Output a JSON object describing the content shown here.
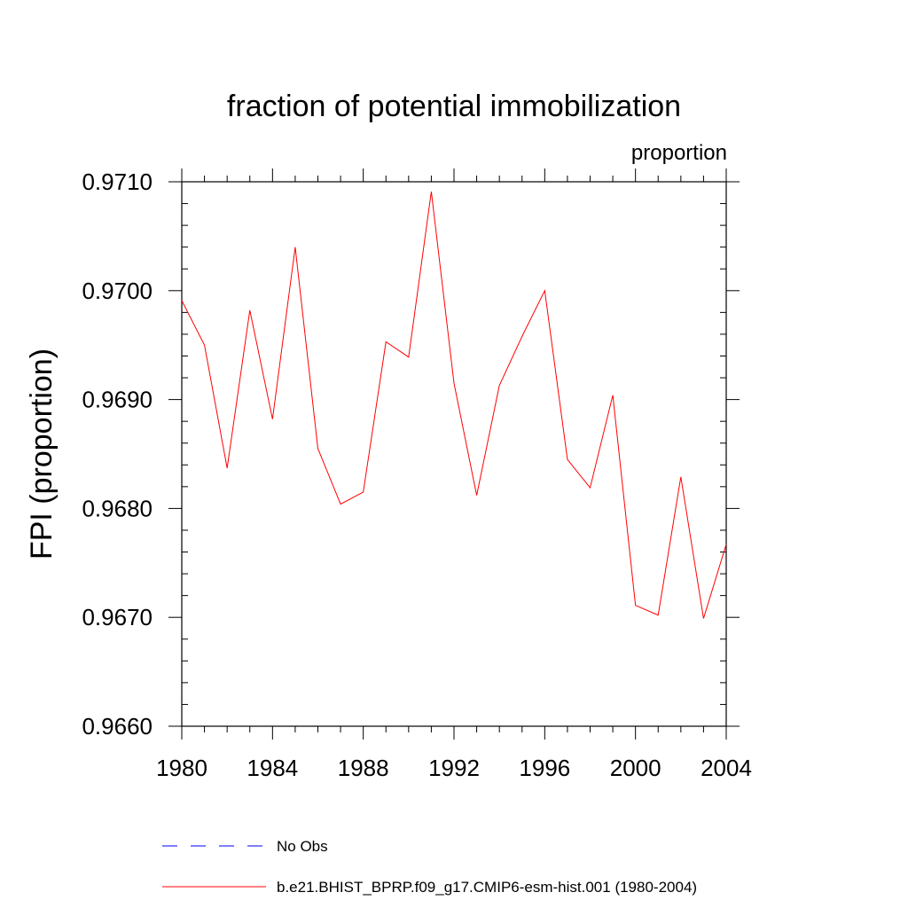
{
  "chart_data": {
    "type": "line",
    "title": "fraction of potential immobilization",
    "units_label": "proportion",
    "xlabel": "",
    "ylabel": "FPI  (proportion)",
    "xlim": [
      1980,
      2004
    ],
    "ylim": [
      0.966,
      0.971
    ],
    "x_ticks": [
      1980,
      1984,
      1988,
      1992,
      1996,
      2000,
      2004
    ],
    "x_tick_labels": [
      "1980",
      "1984",
      "1988",
      "1992",
      "1996",
      "2000",
      "2004"
    ],
    "y_ticks": [
      0.966,
      0.967,
      0.968,
      0.969,
      0.97,
      0.971
    ],
    "y_tick_labels": [
      "0.9660",
      "0.9670",
      "0.9680",
      "0.9690",
      "0.9700",
      "0.9710"
    ],
    "y_minor_step": 0.0002,
    "series": [
      {
        "name": "b.e21.BHIST_BPRP.f09_g17.CMIP6-esm-hist.001 (1980-2004)",
        "color": "#ff0000",
        "dash": "solid",
        "x": [
          1980,
          1981,
          1982,
          1983,
          1984,
          1985,
          1986,
          1987,
          1988,
          1989,
          1990,
          1991,
          1992,
          1993,
          1994,
          1995,
          1996,
          1997,
          1998,
          1999,
          2000,
          2001,
          2002,
          2003,
          2004
        ],
        "values": [
          0.96991,
          0.9695,
          0.96837,
          0.96982,
          0.96882,
          0.9704,
          0.96855,
          0.96804,
          0.96815,
          0.96953,
          0.96939,
          0.97091,
          0.96915,
          0.96812,
          0.96913,
          0.96958,
          0.97,
          0.96845,
          0.96819,
          0.96904,
          0.96711,
          0.96702,
          0.96829,
          0.96699,
          0.96767
        ]
      }
    ],
    "legend": {
      "placement": "bottom",
      "entries": [
        {
          "label": "No Obs",
          "color": "#0000ff",
          "dash": "dashed"
        },
        {
          "label": "b.e21.BHIST_BPRP.f09_g17.CMIP6-esm-hist.001 (1980-2004)",
          "color": "#ff0000",
          "dash": "solid"
        }
      ]
    }
  }
}
